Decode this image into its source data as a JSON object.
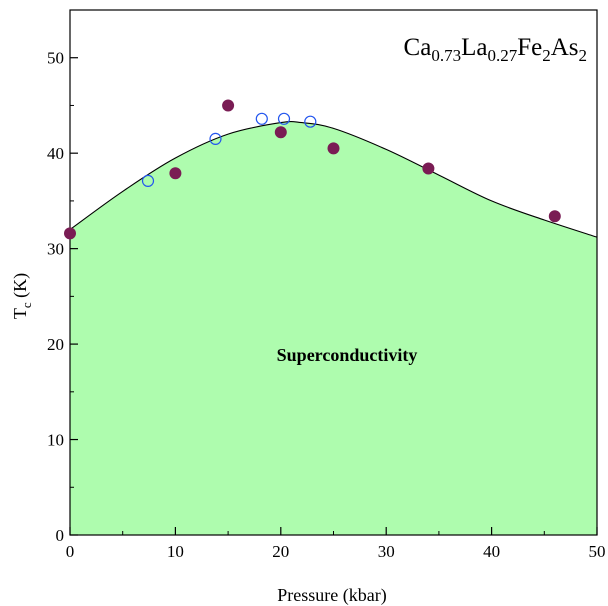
{
  "chart_data": {
    "type": "scatter",
    "title": "",
    "xlabel": "Pressure (kbar)",
    "ylabel": {
      "main": "T",
      "sub": "c",
      "unit": " (K)"
    },
    "xlim": [
      0,
      50
    ],
    "ylim": [
      0,
      55
    ],
    "xticks": [
      0,
      10,
      20,
      30,
      40,
      50
    ],
    "yticks": [
      0,
      10,
      20,
      30,
      40,
      50
    ],
    "grid": false,
    "annotations": {
      "formula": [
        {
          "t": "Ca",
          "sub": false
        },
        {
          "t": "0.73",
          "sub": true
        },
        {
          "t": "La",
          "sub": false
        },
        {
          "t": "0.27",
          "sub": true
        },
        {
          "t": "Fe",
          "sub": false
        },
        {
          "t": "2",
          "sub": true
        },
        {
          "t": "As",
          "sub": false
        },
        {
          "t": "2",
          "sub": true
        }
      ],
      "region_label": "Superconductivity"
    },
    "boundary_curve": {
      "x": [
        0,
        5,
        10,
        15,
        20,
        22,
        25,
        30,
        35,
        40,
        45,
        50
      ],
      "y": [
        32.0,
        36.0,
        39.5,
        42.0,
        43.2,
        43.2,
        42.6,
        40.4,
        37.7,
        35.0,
        33.0,
        31.2
      ],
      "fill_color": "#aefcae",
      "line_color": "#000000"
    },
    "series": [
      {
        "marker": "filled-circle",
        "color": "#7a1c54",
        "x": [
          0,
          10,
          15,
          20,
          25,
          34,
          46
        ],
        "y": [
          31.6,
          37.9,
          45.0,
          42.2,
          40.5,
          38.4,
          33.4
        ]
      },
      {
        "marker": "open-circle",
        "color": "#2255ee",
        "x": [
          7.4,
          13.8,
          18.2,
          20.3,
          22.8
        ],
        "y": [
          37.1,
          41.5,
          43.6,
          43.6,
          43.3
        ]
      }
    ]
  }
}
